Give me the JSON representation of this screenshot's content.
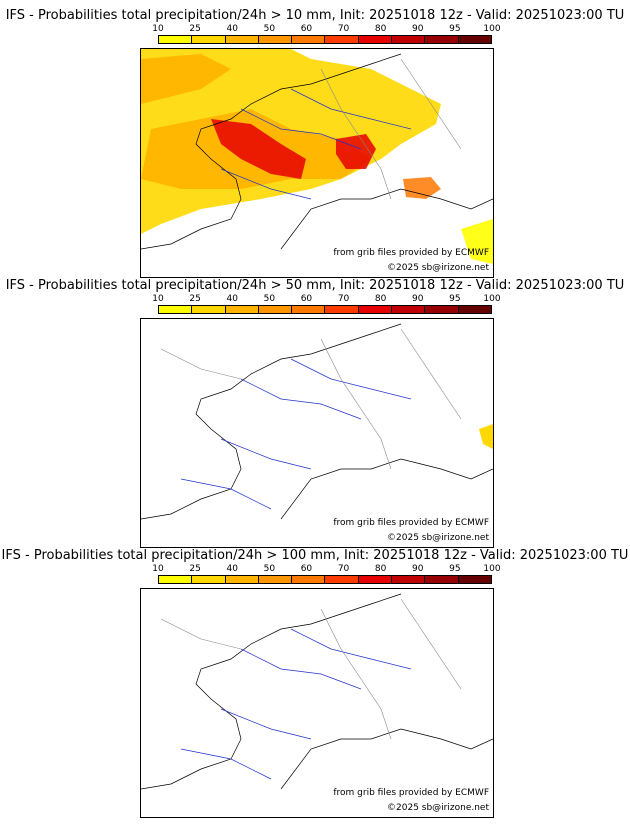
{
  "colorbar": {
    "ticks": [
      "10",
      "25",
      "40",
      "50",
      "60",
      "70",
      "80",
      "90",
      "95",
      "100"
    ],
    "colors": [
      "#ffff00",
      "#ffd800",
      "#ffb400",
      "#ff9600",
      "#ff7800",
      "#ff3c00",
      "#e60000",
      "#c00000",
      "#960000",
      "#640000"
    ]
  },
  "panels": [
    {
      "title": "IFS - Probabilities total precipitation/24h > 10 mm, Init: 20251018 12z - Valid: 20251023:00 TU",
      "credit_source": "from grib files provided by ECMWF",
      "credit_copyright": "©2025 sb@irizone.net"
    },
    {
      "title": "IFS - Probabilities total precipitation/24h > 50 mm, Init: 20251018 12z - Valid: 20251023:00 TU",
      "credit_source": "from grib files provided by ECMWF",
      "credit_copyright": "©2025 sb@irizone.net"
    },
    {
      "title": "IFS - Probabilities total precipitation/24h > 100 mm, Init: 20251018 12z - Valid: 20251023:00 TU",
      "credit_source": "from grib files provided by ECMWF",
      "credit_copyright": "©2025 sb@irizone.net"
    }
  ]
}
